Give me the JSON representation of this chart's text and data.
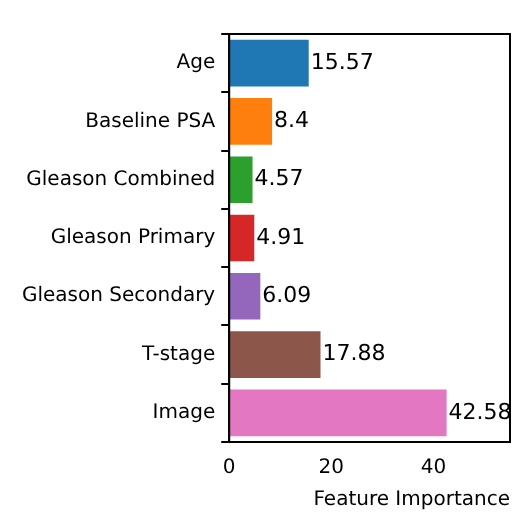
{
  "chart_data": {
    "type": "bar",
    "orientation": "horizontal",
    "xlabel": "Feature Importance",
    "categories": [
      "Age",
      "Baseline PSA",
      "Gleason Combined",
      "Gleason Primary",
      "Gleason Secondary",
      "T-stage",
      "Image"
    ],
    "values": [
      15.57,
      8.4,
      4.57,
      4.91,
      6.09,
      17.88,
      42.58
    ],
    "colors": [
      "#1f77b4",
      "#ff7f0e",
      "#2ca02c",
      "#d62728",
      "#9467bd",
      "#8c564b",
      "#e377c2"
    ],
    "xlim": [
      0,
      55
    ],
    "xticks": [
      0,
      20,
      40
    ],
    "data_labels": true,
    "grid": false,
    "legend": false
  }
}
